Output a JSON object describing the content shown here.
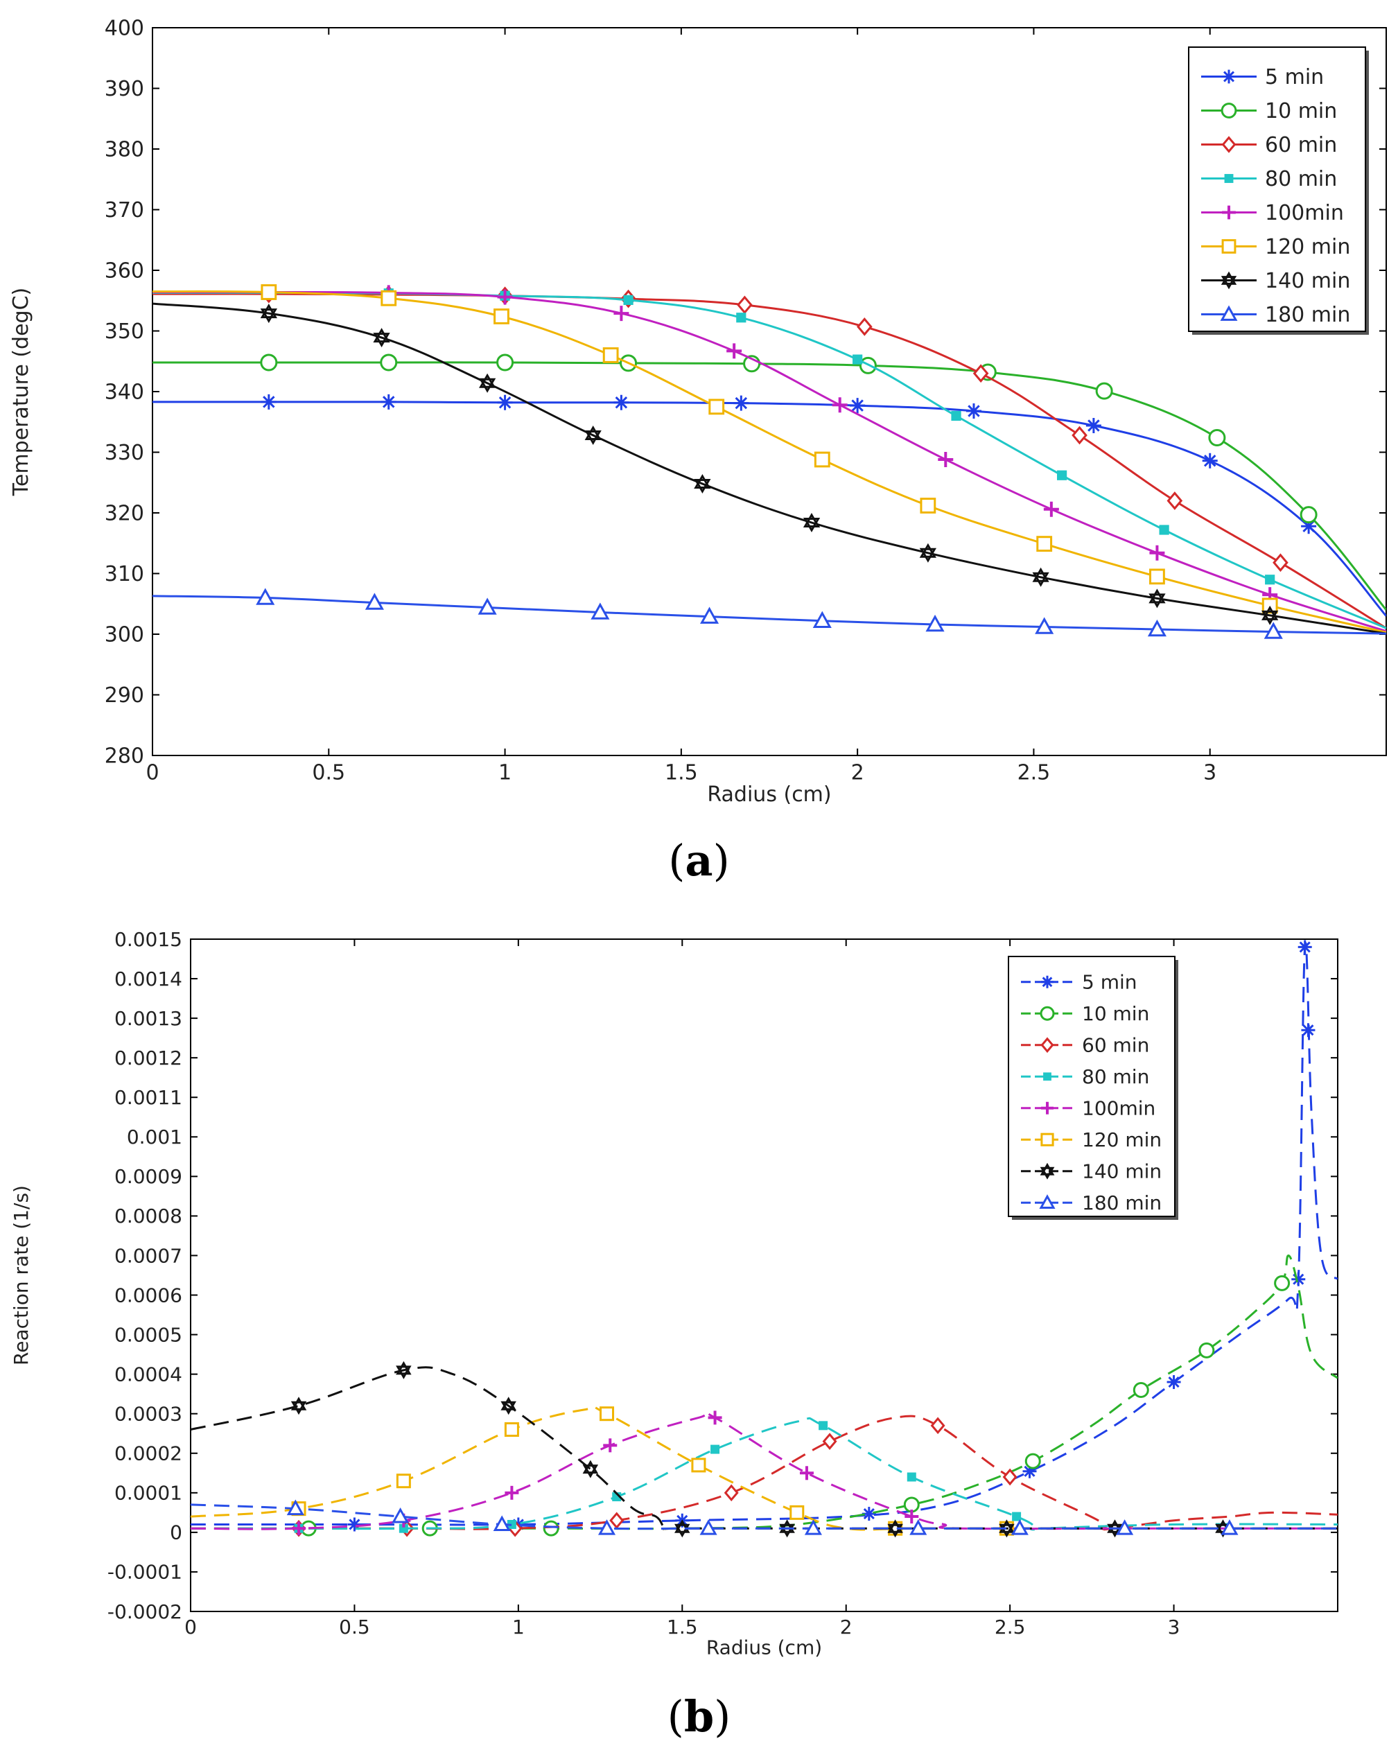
{
  "captions": {
    "a": "a",
    "b": "b"
  },
  "colors": {
    "5 min": "#1f3fe6",
    "10 min": "#2ab12a",
    "60 min": "#d42a2a",
    "80 min": "#20c6c6",
    "100min": "#c020c0",
    "120 min": "#f0b400",
    "140 min": "#111111",
    "180 min": "#2a50e8"
  },
  "markers": {
    "5 min": "star",
    "10 min": "circle",
    "60 min": "diamond",
    "80 min": "square-filled",
    "100min": "plus",
    "120 min": "square",
    "140 min": "hexagram",
    "180 min": "triangle"
  },
  "chart_data": [
    {
      "id": "a",
      "type": "line",
      "title": "",
      "xlabel": "Radius (cm)",
      "ylabel": "Temperature (degC)",
      "xlim": [
        0,
        3.5
      ],
      "ylim": [
        280,
        400
      ],
      "xticks": [
        0,
        0.5,
        1,
        1.5,
        2,
        2.5,
        3
      ],
      "xtick_labels": [
        "0",
        "0.5",
        "1",
        "1.5",
        "2",
        "2.5",
        "3"
      ],
      "yticks": [
        280,
        290,
        300,
        310,
        320,
        330,
        340,
        350,
        360,
        370,
        380,
        390,
        400
      ],
      "ytick_labels": [
        "280",
        "290",
        "300",
        "310",
        "320",
        "330",
        "340",
        "350",
        "360",
        "370",
        "380",
        "390",
        "400"
      ],
      "legend_position": "top-right",
      "line_style": "solid",
      "series": [
        {
          "name": "5 min",
          "x": [
            0,
            0.33,
            0.67,
            1.0,
            1.33,
            1.67,
            2.0,
            2.33,
            2.67,
            3.0,
            3.28,
            3.5
          ],
          "values": [
            338.3,
            338.3,
            338.3,
            338.2,
            338.2,
            338.1,
            337.7,
            336.8,
            334.4,
            328.6,
            317.8,
            303
          ],
          "markers_x": [
            0.33,
            0.67,
            1.0,
            1.33,
            1.67,
            2.0,
            2.33,
            2.67,
            3.0,
            3.28
          ]
        },
        {
          "name": "10 min",
          "x": [
            0,
            0.33,
            0.67,
            1.0,
            1.35,
            1.7,
            2.03,
            2.37,
            2.7,
            3.02,
            3.28,
            3.5
          ],
          "values": [
            344.8,
            344.8,
            344.8,
            344.8,
            344.7,
            344.6,
            344.3,
            343.2,
            340.1,
            332.4,
            319.7,
            304
          ],
          "markers_x": [
            0.33,
            0.67,
            1.0,
            1.35,
            1.7,
            2.03,
            2.37,
            2.7,
            3.02,
            3.28
          ]
        },
        {
          "name": "60 min",
          "x": [
            0,
            0.33,
            0.67,
            1.0,
            1.35,
            1.68,
            2.02,
            2.35,
            2.63,
            2.9,
            3.2,
            3.5
          ],
          "values": [
            356.1,
            356.1,
            356.0,
            355.8,
            355.3,
            354.3,
            350.7,
            343.0,
            332.8,
            322.0,
            311.8,
            301
          ],
          "markers_x": [
            0.33,
            0.67,
            1.0,
            1.35,
            1.68,
            2.02,
            2.35,
            2.63,
            2.9,
            3.2
          ]
        },
        {
          "name": "80 min",
          "x": [
            0,
            0.33,
            0.67,
            1.0,
            1.35,
            1.67,
            2.0,
            2.28,
            2.58,
            2.87,
            3.17,
            3.5
          ],
          "values": [
            356.3,
            356.3,
            356.2,
            355.8,
            355.1,
            352.2,
            345.3,
            336.0,
            326.2,
            317.2,
            309.0,
            301
          ],
          "markers_x": [
            0.33,
            0.67,
            1.0,
            1.35,
            1.67,
            2.0,
            2.28,
            2.58,
            2.87,
            3.17
          ]
        },
        {
          "name": "100min",
          "x": [
            0,
            0.33,
            0.67,
            1.0,
            1.33,
            1.65,
            1.95,
            2.25,
            2.55,
            2.85,
            3.17,
            3.5
          ],
          "values": [
            356.4,
            356.4,
            356.3,
            355.6,
            352.9,
            346.7,
            337.8,
            328.8,
            320.6,
            313.4,
            306.5,
            300.5
          ],
          "markers_x": [
            0.33,
            0.67,
            1.0,
            1.33,
            1.65,
            1.95,
            2.25,
            2.55,
            2.85,
            3.17
          ]
        },
        {
          "name": "120 min",
          "x": [
            0,
            0.33,
            0.67,
            0.99,
            1.3,
            1.6,
            1.9,
            2.2,
            2.53,
            2.85,
            3.17,
            3.5
          ],
          "values": [
            356.5,
            356.4,
            355.4,
            352.4,
            346.0,
            337.5,
            328.8,
            321.2,
            314.9,
            309.5,
            304.7,
            300.3
          ],
          "markers_x": [
            0.33,
            0.67,
            0.99,
            1.3,
            1.6,
            1.9,
            2.2,
            2.53,
            2.85,
            3.17
          ]
        },
        {
          "name": "140 min",
          "x": [
            0,
            0.33,
            0.65,
            0.95,
            1.25,
            1.56,
            1.87,
            2.2,
            2.52,
            2.85,
            3.17,
            3.5
          ],
          "values": [
            354.5,
            352.9,
            348.9,
            341.4,
            332.8,
            324.8,
            318.4,
            313.4,
            309.4,
            305.9,
            303.1,
            300.1
          ],
          "markers_x": [
            0.33,
            0.65,
            0.95,
            1.25,
            1.56,
            1.87,
            2.2,
            2.52,
            2.85,
            3.17
          ]
        },
        {
          "name": "180 min",
          "x": [
            0,
            0.32,
            0.63,
            0.95,
            1.27,
            1.58,
            1.9,
            2.22,
            2.53,
            2.85,
            3.18,
            3.5
          ],
          "values": [
            306.3,
            306.0,
            305.2,
            304.4,
            303.6,
            302.9,
            302.2,
            301.6,
            301.2,
            300.8,
            300.4,
            300.1
          ],
          "markers_x": [
            0.32,
            0.63,
            0.95,
            1.27,
            1.58,
            1.9,
            2.22,
            2.53,
            2.85,
            3.18
          ]
        }
      ]
    },
    {
      "id": "b",
      "type": "line",
      "title": "",
      "xlabel": "Radius (cm)",
      "ylabel": "Reaction rate (1/s)",
      "xlim": [
        0,
        3.5
      ],
      "ylim": [
        -0.0002,
        0.0015
      ],
      "xticks": [
        0,
        0.5,
        1,
        1.5,
        2,
        2.5,
        3
      ],
      "xtick_labels": [
        "0",
        "0.5",
        "1",
        "1.5",
        "2",
        "2.5",
        "3"
      ],
      "yticks": [
        -0.0002,
        -0.0001,
        0,
        0.0001,
        0.0002,
        0.0003,
        0.0004,
        0.0005,
        0.0006,
        0.0007,
        0.0008,
        0.0009,
        0.001,
        0.0011,
        0.0012,
        0.0013,
        0.0014,
        0.0015
      ],
      "ytick_labels": [
        "-0.0002",
        "-0.0001",
        "0",
        "0.0001",
        "0.0002",
        "0.0003",
        "0.0004",
        "0.0005",
        "0.0006",
        "0.0007",
        "0.0008",
        "0.0009",
        "0.001",
        "0.0011",
        "0.0012",
        "0.0013",
        "0.0014",
        "0.0015"
      ],
      "legend_position": "top-right",
      "line_style": "dashed",
      "series": [
        {
          "name": "5 min",
          "x": [
            0,
            0.2,
            0.5,
            1.0,
            1.5,
            2.0,
            2.3,
            2.55,
            2.8,
            3.0,
            3.2,
            3.35,
            3.38,
            3.4,
            3.42,
            3.45,
            3.5
          ],
          "values": [
            2e-05,
            2e-05,
            2e-05,
            2e-05,
            3e-05,
            4e-05,
            7e-05,
            0.00015,
            0.00026,
            0.00038,
            0.0005,
            0.00059,
            0.00064,
            0.00148,
            0.00106,
            0.0007,
            0.00064
          ],
          "markers_x": [
            0.5,
            1.0,
            1.5,
            2.07,
            2.56,
            3.0,
            3.38,
            3.4,
            3.41
          ]
        },
        {
          "name": "10 min",
          "x": [
            0,
            0.36,
            0.73,
            1.1,
            1.5,
            1.85,
            2.2,
            2.4,
            2.57,
            2.75,
            2.9,
            3.1,
            3.25,
            3.33,
            3.35,
            3.38,
            3.42,
            3.5
          ],
          "values": [
            1e-05,
            1e-05,
            1e-05,
            1e-05,
            1e-05,
            2e-05,
            7e-05,
            0.00012,
            0.00018,
            0.00027,
            0.00036,
            0.00046,
            0.00056,
            0.00063,
            0.0007,
            0.00062,
            0.00045,
            0.00039
          ],
          "markers_x": [
            0.36,
            0.73,
            1.1,
            2.2,
            2.57,
            2.9,
            3.1,
            3.33
          ]
        },
        {
          "name": "60 min",
          "x": [
            0,
            0.33,
            0.66,
            0.99,
            1.3,
            1.65,
            1.95,
            2.15,
            2.28,
            2.5,
            2.77,
            2.78,
            2.82,
            3.0,
            3.17,
            3.3,
            3.5
          ],
          "values": [
            1e-05,
            1e-05,
            1e-05,
            1e-05,
            3e-05,
            0.0001,
            0.00023,
            0.00029,
            0.00027,
            0.00014,
            3e-05,
            1e-05,
            1e-05,
            3e-05,
            4e-05,
            5e-05,
            4.5e-05
          ],
          "markers_x": [
            0.33,
            0.66,
            0.99,
            1.3,
            1.65,
            1.95,
            2.28,
            2.5
          ]
        },
        {
          "name": "80 min",
          "x": [
            0,
            0.33,
            0.65,
            0.98,
            1.3,
            1.6,
            1.85,
            1.93,
            2.2,
            2.52,
            2.58,
            2.6,
            3.0,
            3.5
          ],
          "values": [
            1e-05,
            1e-05,
            1e-05,
            2e-05,
            9e-05,
            0.00021,
            0.00028,
            0.00027,
            0.00014,
            4e-05,
            1e-05,
            1e-05,
            2e-05,
            2e-05
          ],
          "markers_x": [
            0.33,
            0.65,
            0.98,
            1.3,
            1.6,
            1.93,
            2.2,
            2.52
          ]
        },
        {
          "name": "100min",
          "x": [
            0,
            0.33,
            0.65,
            0.98,
            1.28,
            1.55,
            1.6,
            1.88,
            2.2,
            2.3,
            2.35,
            3.0,
            3.5
          ],
          "values": [
            1e-05,
            1e-05,
            3e-05,
            0.0001,
            0.00022,
            0.00029,
            0.00029,
            0.00015,
            4e-05,
            2e-05,
            1e-05,
            1e-05,
            1e-05
          ],
          "markers_x": [
            0.33,
            0.65,
            0.98,
            1.28,
            1.6,
            1.88,
            2.2
          ]
        },
        {
          "name": "120 min",
          "x": [
            0,
            0.33,
            0.65,
            0.98,
            1.2,
            1.27,
            1.55,
            1.85,
            2.0,
            2.2,
            2.5,
            3.0,
            3.5
          ],
          "values": [
            4e-05,
            6e-05,
            0.00013,
            0.00026,
            0.00031,
            0.0003,
            0.00017,
            5e-05,
            1e-05,
            1e-05,
            1e-05,
            1e-05,
            1e-05
          ],
          "markers_x": [
            0.33,
            0.65,
            0.98,
            1.27,
            1.55,
            1.85,
            2.15,
            2.49
          ]
        },
        {
          "name": "140 min",
          "x": [
            0,
            0.33,
            0.65,
            0.8,
            0.97,
            1.22,
            1.35,
            1.42,
            1.45,
            1.5,
            2.0,
            2.5,
            3.0,
            3.5
          ],
          "values": [
            0.00026,
            0.00032,
            0.00041,
            0.0004,
            0.00032,
            0.00016,
            6e-05,
            4e-05,
            1e-05,
            1e-05,
            1e-05,
            1e-05,
            1e-05,
            1e-05
          ],
          "markers_x": [
            0.33,
            0.65,
            0.97,
            1.22,
            1.5,
            1.82,
            2.15,
            2.49,
            2.82,
            3.15
          ]
        },
        {
          "name": "180 min",
          "x": [
            0,
            0.32,
            0.64,
            0.95,
            1.27,
            1.58,
            1.9,
            2.22,
            2.53,
            2.85,
            3.17,
            3.5
          ],
          "values": [
            7e-05,
            6e-05,
            4e-05,
            2e-05,
            1e-05,
            1e-05,
            1e-05,
            1e-05,
            1e-05,
            1e-05,
            1e-05,
            1e-05
          ],
          "markers_x": [
            0.32,
            0.64,
            0.95,
            1.27,
            1.58,
            1.9,
            2.22,
            2.53,
            2.85,
            3.17
          ]
        }
      ]
    }
  ]
}
